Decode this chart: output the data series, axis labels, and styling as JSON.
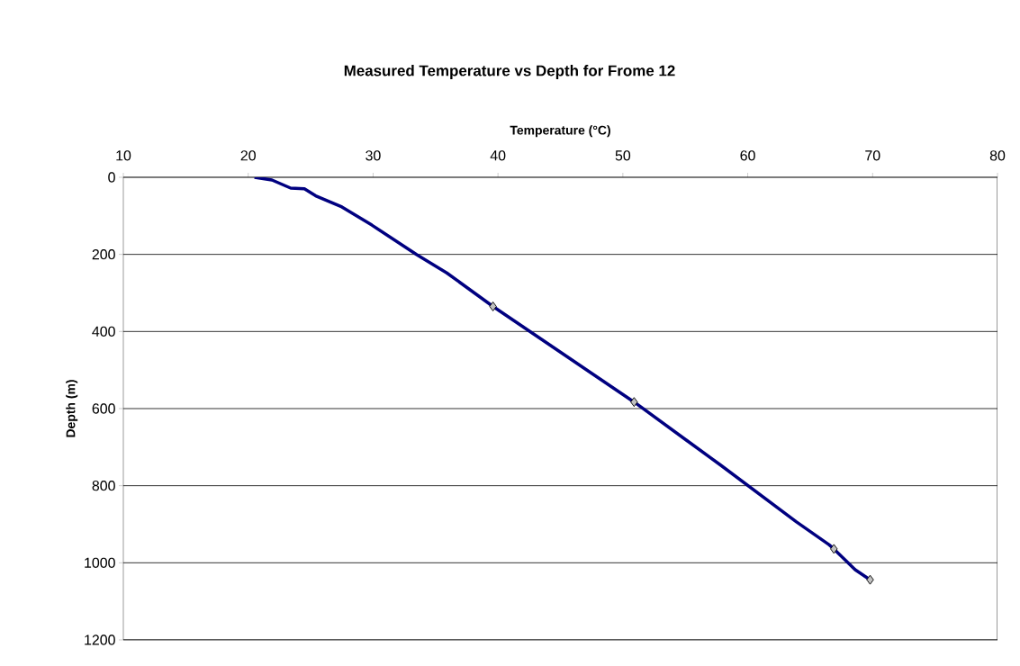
{
  "chart_data": {
    "type": "line",
    "title": "Measured Temperature vs Depth for Frome 12",
    "xlabel": "Temperature (°C)",
    "ylabel": "Depth (m)",
    "xlim": [
      10,
      80
    ],
    "xticks": [
      10,
      20,
      30,
      40,
      50,
      60,
      70,
      80
    ],
    "ylim": [
      1200,
      0
    ],
    "yticks": [
      0,
      200,
      400,
      600,
      800,
      1000,
      1200
    ],
    "grid": "y",
    "series": [
      {
        "color": "#000080",
        "marker": "none",
        "x": [
          20.5,
          21.9,
          23.4,
          24.5,
          25.4,
          27.5,
          29.9,
          33.5,
          35.9,
          39.6,
          50.9,
          57.8,
          63.9,
          66.5,
          66.9,
          68.6,
          69.8
        ],
        "values": [
          0,
          7,
          28,
          30,
          48,
          77,
          124,
          201,
          248,
          335,
          583,
          746,
          894,
          953,
          964,
          1018,
          1044
        ]
      },
      {
        "type": "scatter",
        "color": "#c0c0c0",
        "marker": "diamond",
        "x": [
          39.6,
          50.9,
          66.9,
          69.8
        ],
        "values": [
          335,
          583,
          964,
          1044
        ]
      }
    ]
  }
}
